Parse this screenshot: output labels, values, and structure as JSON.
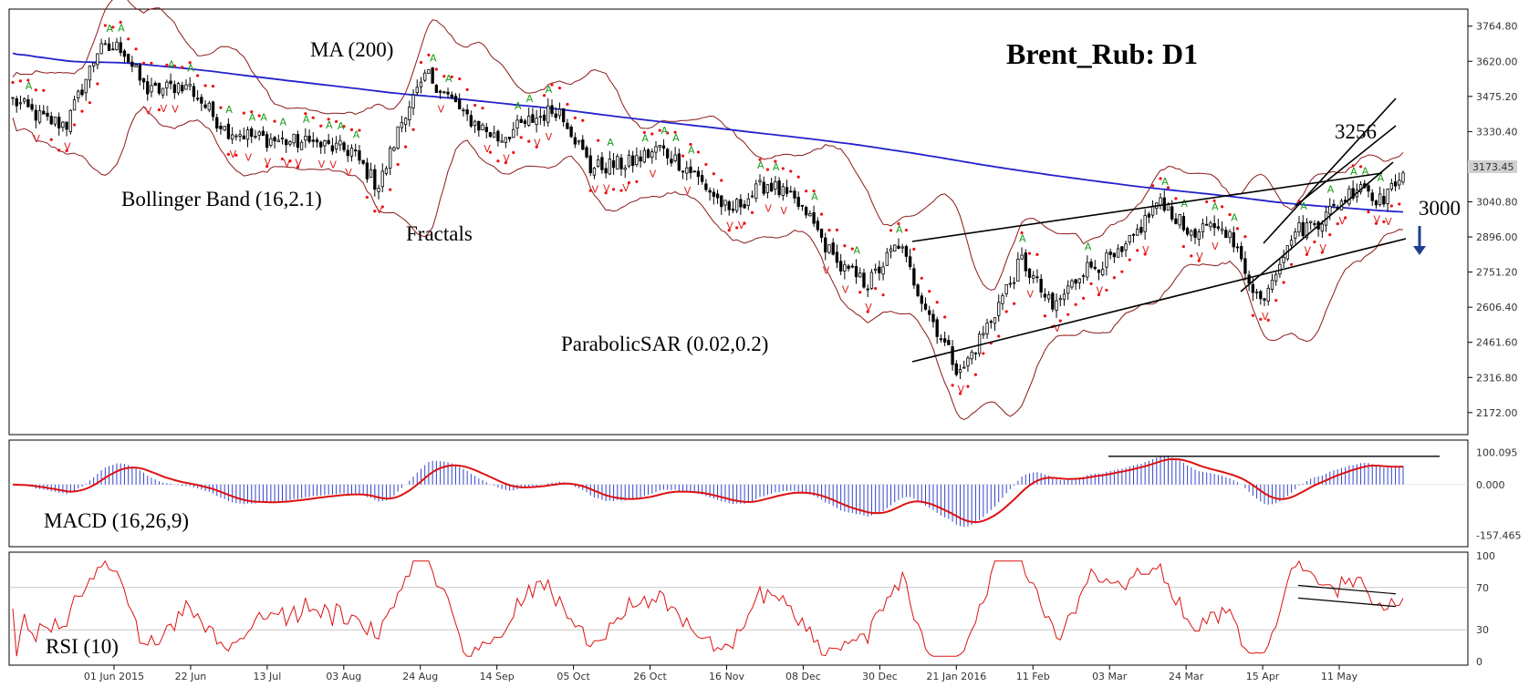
{
  "chart_data": {
    "type": "candlestick",
    "title": "Brent_Rub: D1",
    "instrument": "Brent_Rub",
    "timeframe": "D1",
    "indicator_labels": {
      "ma": "MA (200)",
      "bollinger": "Bollinger Band (16,2.1)",
      "fractals": "Fractals",
      "sar": "ParabolicSAR (0.02,0.2)",
      "macd": "MACD (16,26,9)",
      "rsi": "RSI (10)"
    },
    "annotations": {
      "resistance_label": "3256",
      "support_label": "3000",
      "last_price_label": "3173.45"
    },
    "price_axis": {
      "ticks": [
        "3764.80",
        "3620.00",
        "3475.20",
        "3330.40",
        "3185.60",
        "3040.80",
        "2896.00",
        "2751.20",
        "2606.40",
        "2461.60",
        "2316.80",
        "2172.00"
      ],
      "ylim": [
        2100,
        3820
      ]
    },
    "macd_axis": {
      "ticks": [
        "100.095",
        "0.000",
        "-157.465"
      ],
      "ylim": [
        -185,
        130
      ]
    },
    "rsi_axis": {
      "ticks": [
        "100",
        "70",
        "30",
        "0"
      ],
      "ylim": [
        0,
        100
      ]
    },
    "x_ticks": [
      "01 Jun 2015",
      "22 Jun",
      "13 Jul",
      "03 Aug",
      "24 Aug",
      "14 Sep",
      "05 Oct",
      "26 Oct",
      "16 Nov",
      "08 Dec",
      "30 Dec",
      "21 Jan 2016",
      "11 Feb",
      "03 Mar",
      "24 Mar",
      "15 Apr",
      "11 May"
    ],
    "close_path": [
      {
        "i": 0,
        "c": 3460
      },
      {
        "i": 8,
        "c": 3380
      },
      {
        "i": 14,
        "c": 3360
      },
      {
        "i": 22,
        "c": 3660
      },
      {
        "i": 28,
        "c": 3680
      },
      {
        "i": 35,
        "c": 3490
      },
      {
        "i": 45,
        "c": 3530
      },
      {
        "i": 55,
        "c": 3340
      },
      {
        "i": 65,
        "c": 3300
      },
      {
        "i": 78,
        "c": 3280
      },
      {
        "i": 88,
        "c": 3250
      },
      {
        "i": 95,
        "c": 3100
      },
      {
        "i": 102,
        "c": 3420
      },
      {
        "i": 108,
        "c": 3560
      },
      {
        "i": 118,
        "c": 3390
      },
      {
        "i": 126,
        "c": 3300
      },
      {
        "i": 135,
        "c": 3380
      },
      {
        "i": 142,
        "c": 3430
      },
      {
        "i": 150,
        "c": 3180
      },
      {
        "i": 160,
        "c": 3200
      },
      {
        "i": 168,
        "c": 3260
      },
      {
        "i": 176,
        "c": 3170
      },
      {
        "i": 186,
        "c": 3000
      },
      {
        "i": 196,
        "c": 3120
      },
      {
        "i": 206,
        "c": 3000
      },
      {
        "i": 214,
        "c": 2780
      },
      {
        "i": 222,
        "c": 2700
      },
      {
        "i": 230,
        "c": 2870
      },
      {
        "i": 236,
        "c": 2640
      },
      {
        "i": 246,
        "c": 2330
      },
      {
        "i": 254,
        "c": 2560
      },
      {
        "i": 262,
        "c": 2800
      },
      {
        "i": 270,
        "c": 2600
      },
      {
        "i": 278,
        "c": 2760
      },
      {
        "i": 288,
        "c": 2820
      },
      {
        "i": 298,
        "c": 3060
      },
      {
        "i": 306,
        "c": 2890
      },
      {
        "i": 314,
        "c": 2960
      },
      {
        "i": 324,
        "c": 2630
      },
      {
        "i": 332,
        "c": 2910
      },
      {
        "i": 340,
        "c": 2970
      },
      {
        "i": 350,
        "c": 3120
      },
      {
        "i": 356,
        "c": 3030
      },
      {
        "i": 360,
        "c": 3160
      }
    ]
  }
}
